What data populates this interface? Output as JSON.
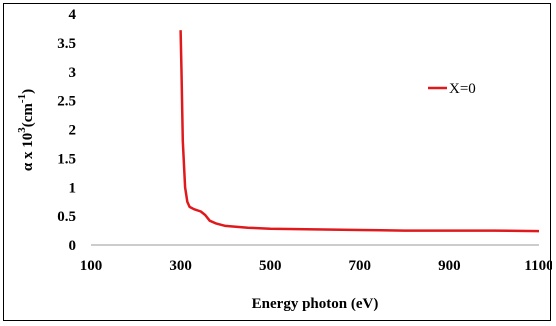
{
  "chart_data": {
    "type": "line",
    "title": "",
    "xlabel": "Energy photon (eV)",
    "ylabel_prefix": "α x 10",
    "ylabel_sup": "3",
    "ylabel_unit": "(cm",
    "ylabel_unit_sup": "-1",
    "ylabel_close": ")",
    "xlim": [
      100,
      1100
    ],
    "ylim": [
      0,
      4
    ],
    "x_ticks": [
      "100",
      "300",
      "500",
      "700",
      "900",
      "1100"
    ],
    "y_ticks": [
      "0",
      "0.5",
      "1",
      "1.5",
      "2",
      "2.5",
      "3",
      "3.5",
      "4"
    ],
    "grid": false,
    "legend_position": "top-right",
    "series": [
      {
        "name": "X=0",
        "color": "#e0191d",
        "x": [
          300,
          302,
          305,
          310,
          315,
          320,
          330,
          345,
          355,
          365,
          380,
          400,
          450,
          500,
          600,
          700,
          800,
          900,
          1000,
          1100
        ],
        "y": [
          3.72,
          3.0,
          1.8,
          1.0,
          0.75,
          0.66,
          0.62,
          0.58,
          0.52,
          0.42,
          0.37,
          0.33,
          0.3,
          0.28,
          0.27,
          0.26,
          0.25,
          0.25,
          0.25,
          0.24
        ]
      }
    ]
  }
}
